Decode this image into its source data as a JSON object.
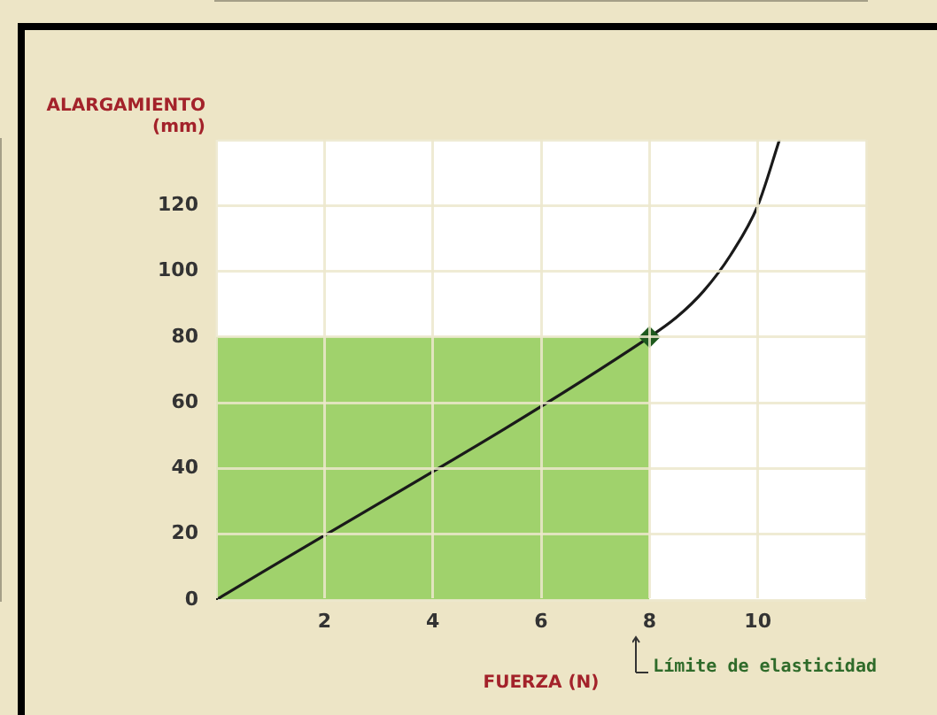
{
  "chart_data": {
    "type": "line",
    "xlabel": "FUERZA (N)",
    "ylabel": "ALARGAMIENTO (mm)",
    "xlim": [
      0,
      12
    ],
    "xticks": [
      {
        "value": 0,
        "label": null
      },
      2,
      4,
      6,
      8,
      10,
      {
        "value": 12,
        "label": null
      }
    ],
    "ylim": [
      0,
      140
    ],
    "yticks": [
      0,
      20,
      40,
      60,
      80,
      100,
      120,
      {
        "value": 140,
        "label": null
      }
    ],
    "grid": true,
    "legend": false,
    "marker": "none",
    "line_style": "solid",
    "series": [
      {
        "type": "area",
        "color": "#a0d26c",
        "x": [
          0,
          8
        ],
        "values": [
          80,
          80
        ]
      },
      {
        "type": "line",
        "color": "#1a1a1a",
        "x": [
          0,
          8,
          8.5,
          9,
          9.5,
          10,
          10.4
        ],
        "values": [
          0,
          80,
          86,
          94,
          105,
          120,
          140
        ]
      },
      {
        "type": "scatter",
        "color": "#1e5a1e",
        "marker": "diamond",
        "x": [
          8
        ],
        "values": [
          80
        ]
      }
    ],
    "annotations": [
      "Límite de elasticidad"
    ]
  }
}
